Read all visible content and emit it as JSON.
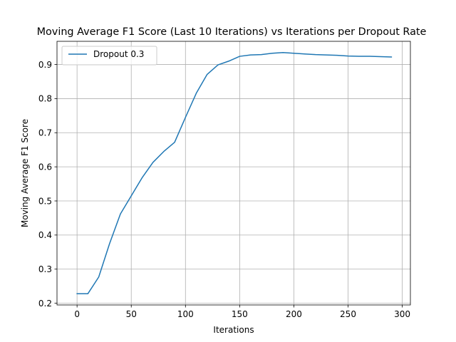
{
  "chart_data": {
    "type": "line",
    "title": "Moving Average F1 Score (Last 10 Iterations) vs Iterations per Dropout Rate",
    "xlabel": "Iterations",
    "ylabel": "Moving Average F1 Score",
    "xlim": [
      -18.5,
      307.5
    ],
    "ylim": [
      0.195,
      0.968
    ],
    "xticks": [
      0,
      50,
      100,
      150,
      200,
      250,
      300
    ],
    "yticks": [
      0.2,
      0.3,
      0.4,
      0.5,
      0.6,
      0.7,
      0.8,
      0.9
    ],
    "grid": true,
    "legend_position": "top-left",
    "series": [
      {
        "name": "Dropout 0.3",
        "color": "#1f77b4",
        "x": [
          0,
          10,
          20,
          30,
          40,
          50,
          60,
          70,
          80,
          90,
          100,
          110,
          120,
          130,
          140,
          150,
          160,
          170,
          180,
          190,
          200,
          210,
          220,
          230,
          240,
          250,
          260,
          270,
          280,
          290
        ],
        "y": [
          0.228,
          0.228,
          0.277,
          0.375,
          0.462,
          0.515,
          0.568,
          0.613,
          0.645,
          0.672,
          0.745,
          0.816,
          0.871,
          0.899,
          0.91,
          0.924,
          0.928,
          0.929,
          0.933,
          0.935,
          0.933,
          0.931,
          0.929,
          0.928,
          0.927,
          0.925,
          0.924,
          0.924,
          0.923,
          0.922
        ]
      }
    ]
  }
}
